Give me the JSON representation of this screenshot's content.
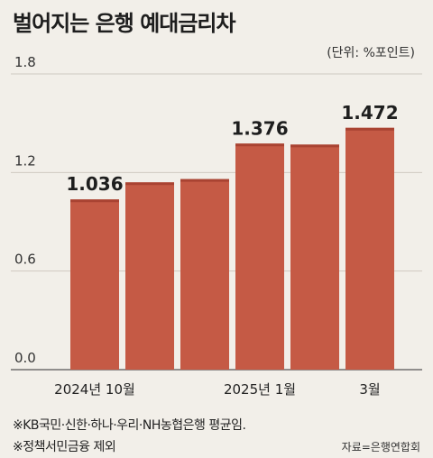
{
  "title": "벌어지는 은행 예대금리차",
  "unit_label": "(단위: %포인트)",
  "notes": [
    "※KB국민·신한·하나·우리·NH농협은행 평균임.",
    "※정책서민금융 제외"
  ],
  "source": "자료=은행연합회",
  "colors": {
    "bar": "#c55a45",
    "bar_top": "#a94332",
    "background": "#f2efe9",
    "grid": "#cfcac1"
  },
  "chart_data": {
    "type": "bar",
    "title": "벌어지는 은행 예대금리차",
    "ylabel": "(단위: %포인트)",
    "ylim": [
      0,
      1.8
    ],
    "yticks": [
      "0.0",
      "0.6",
      "1.2",
      "1.8"
    ],
    "ytick_values": [
      0,
      0.6,
      1.2,
      1.8
    ],
    "categories": [
      "2024년 10월",
      "",
      "",
      "2025년 1월",
      "",
      "3월"
    ],
    "values": [
      1.036,
      1.14,
      1.16,
      1.376,
      1.37,
      1.472
    ],
    "data_labels": [
      "1.036",
      "",
      "",
      "1.376",
      "",
      "1.472"
    ],
    "grid": true
  }
}
